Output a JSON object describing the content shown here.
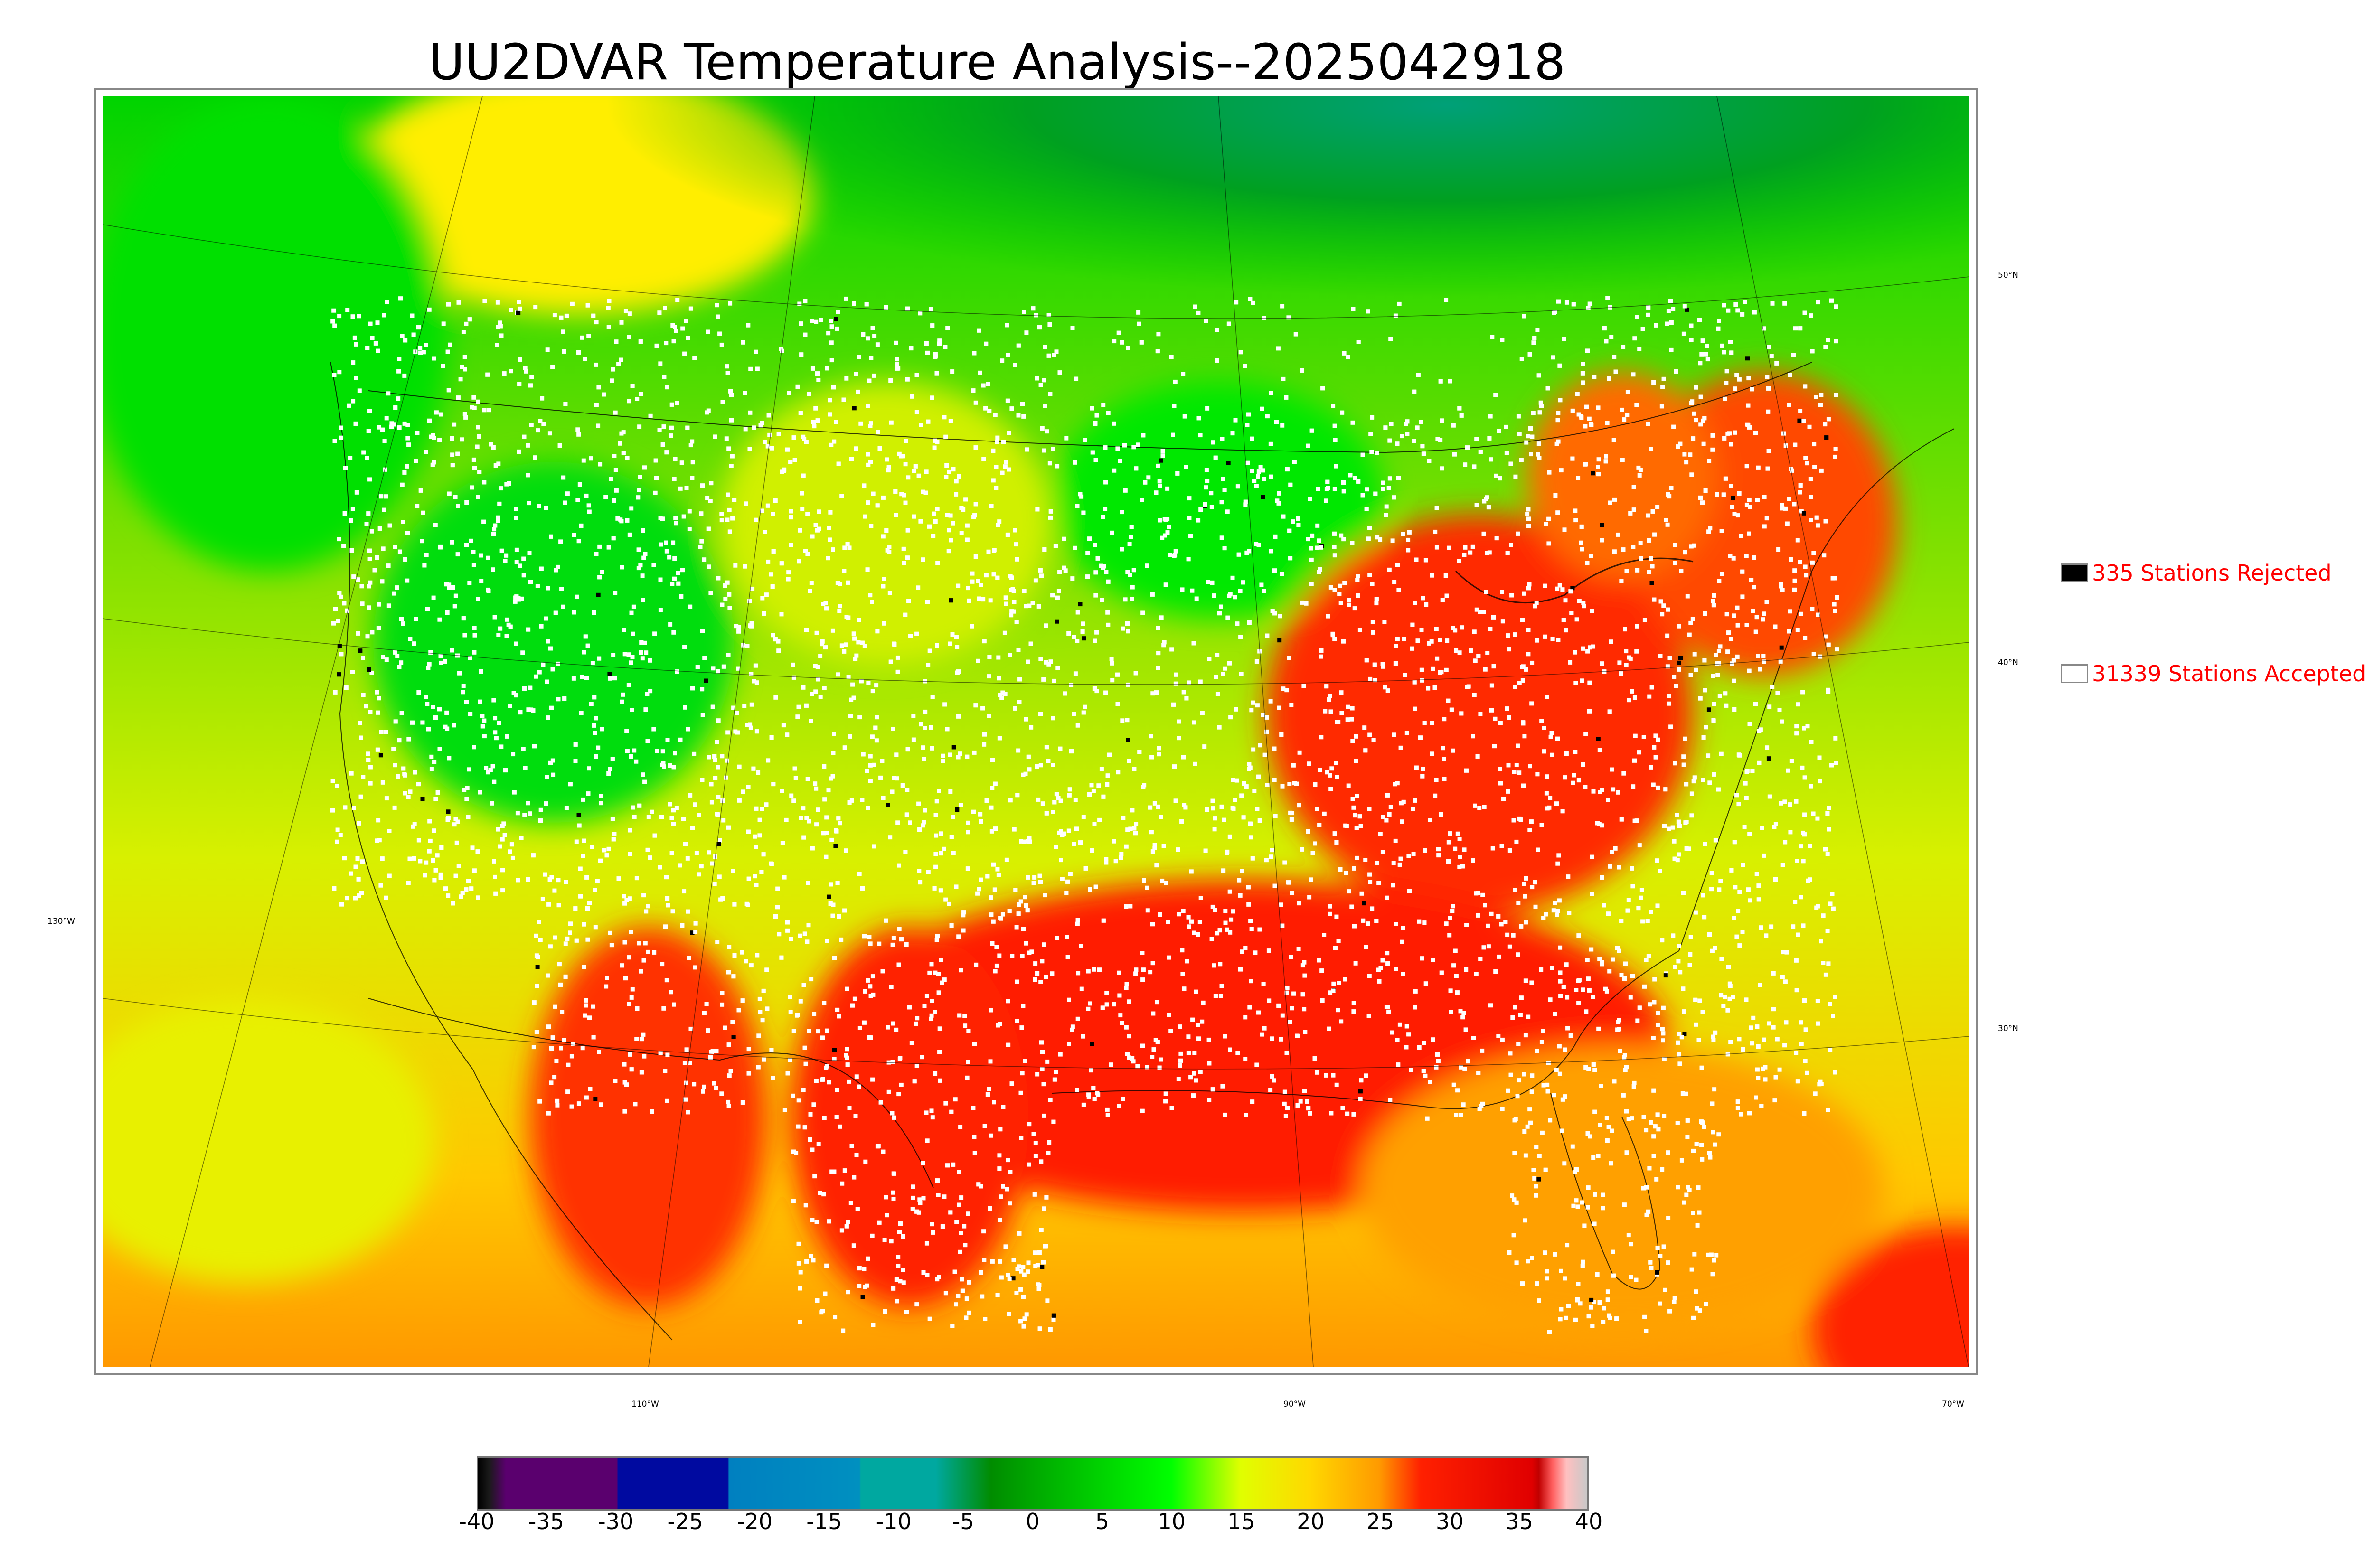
{
  "title": "UU2DVAR Temperature Analysis--2025042918",
  "map": {
    "lat_labels": [
      "50°N",
      "40°N",
      "30°N"
    ],
    "lon_labels": [
      "130°W",
      "110°W",
      "90°W",
      "70°W"
    ],
    "station_color_accepted": "#ffffff",
    "station_color_rejected": "#000000"
  },
  "legend": {
    "rejected_label": "335 Stations Rejected",
    "accepted_label": "31339 Stations Accepted",
    "rejected_color": "#000000",
    "accepted_color": "#ffffff",
    "text_color": "#ff0000"
  },
  "colorbar": {
    "ticks": [
      "-40",
      "-35",
      "-30",
      "-25",
      "-20",
      "-15",
      "-10",
      "-5",
      "0",
      "5",
      "10",
      "15",
      "20",
      "25",
      "30",
      "35",
      "40"
    ],
    "min": -40,
    "max": 40,
    "stops": [
      {
        "value": -40,
        "color": "#000000"
      },
      {
        "value": -39.2,
        "color": "#1a1a1a"
      },
      {
        "value": -38,
        "color": "#5a006e"
      },
      {
        "value": -30,
        "color": "#5a006e"
      },
      {
        "value": -29.9,
        "color": "#000aa0"
      },
      {
        "value": -22,
        "color": "#000aa0"
      },
      {
        "value": -21.9,
        "color": "#0080c0"
      },
      {
        "value": -12.5,
        "color": "#0090c0"
      },
      {
        "value": -12.4,
        "color": "#00a8a0"
      },
      {
        "value": -7,
        "color": "#00a8a0"
      },
      {
        "value": -3,
        "color": "#008c00"
      },
      {
        "value": 0,
        "color": "#00a800"
      },
      {
        "value": 10,
        "color": "#00ff00"
      },
      {
        "value": 15,
        "color": "#e0ff00"
      },
      {
        "value": 20,
        "color": "#ffd800"
      },
      {
        "value": 25,
        "color": "#ff9a00"
      },
      {
        "value": 28,
        "color": "#ff2000"
      },
      {
        "value": 36,
        "color": "#e00000"
      },
      {
        "value": 36.5,
        "color": "#c00000"
      },
      {
        "value": 37.5,
        "color": "#ff6060"
      },
      {
        "value": 38.5,
        "color": "#ffc0c0"
      },
      {
        "value": 40,
        "color": "#c8c8c8"
      }
    ]
  }
}
